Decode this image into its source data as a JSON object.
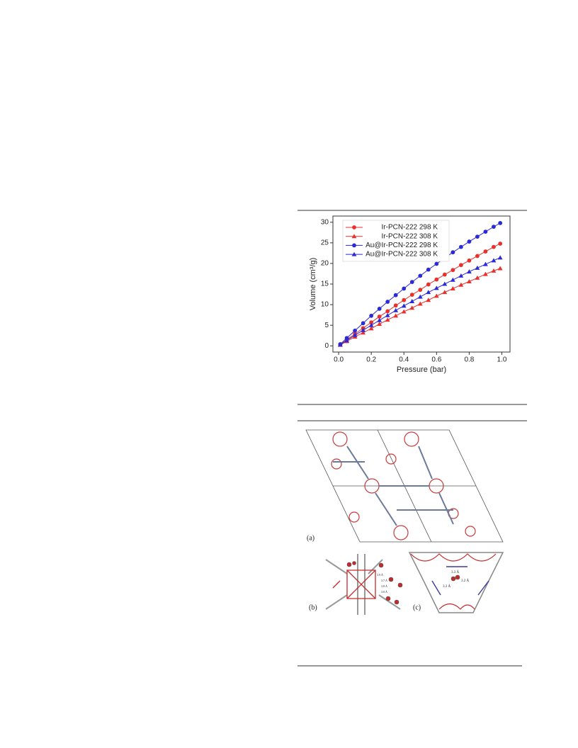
{
  "chart_data": {
    "type": "line",
    "x_label": "Pressure (bar)",
    "y_label": "Volume (cm³/g)",
    "x": [
      0.01,
      0.05,
      0.1,
      0.15,
      0.2,
      0.25,
      0.3,
      0.35,
      0.4,
      0.45,
      0.5,
      0.55,
      0.6,
      0.65,
      0.7,
      0.75,
      0.8,
      0.85,
      0.9,
      0.95,
      0.99
    ],
    "series": [
      {
        "name": "Ir-PCN-222 298 K",
        "color": "#e8302c",
        "marker": "circle",
        "values": [
          0.3,
          1.5,
          2.9,
          4.3,
          5.7,
          7.1,
          8.4,
          9.8,
          11.1,
          12.4,
          13.6,
          14.9,
          16.1,
          17.3,
          18.4,
          19.6,
          20.7,
          21.8,
          22.9,
          24.0,
          24.8
        ]
      },
      {
        "name": "Ir-PCN-222 308 K",
        "color": "#e8302c",
        "marker": "triangle",
        "values": [
          0.2,
          1.1,
          2.2,
          3.2,
          4.2,
          5.3,
          6.3,
          7.3,
          8.3,
          9.2,
          10.2,
          11.1,
          12.1,
          13.0,
          13.9,
          14.8,
          15.6,
          16.5,
          17.4,
          18.2,
          18.8
        ]
      },
      {
        "name": "Au@Ir-PCN-222 298 K",
        "color": "#2a2ad6",
        "marker": "circle",
        "values": [
          0.4,
          1.9,
          3.7,
          5.5,
          7.3,
          9.0,
          10.7,
          12.3,
          13.9,
          15.5,
          17.0,
          18.5,
          19.9,
          21.3,
          22.7,
          24.0,
          25.3,
          26.5,
          27.7,
          28.9,
          29.8
        ]
      },
      {
        "name": "Au@Ir-PCN-222 308 K",
        "color": "#2a2ad6",
        "marker": "triangle",
        "values": [
          0.3,
          1.3,
          2.6,
          3.8,
          5.0,
          6.2,
          7.4,
          8.6,
          9.7,
          10.8,
          11.9,
          13.0,
          14.0,
          15.0,
          16.0,
          17.0,
          18.0,
          18.9,
          19.8,
          20.7,
          21.4
        ]
      }
    ],
    "xlim": [
      -0.035,
      1.05
    ],
    "xticks": [
      {
        "value": 0,
        "label": "0.0"
      },
      {
        "value": 0.2,
        "label": "0.2"
      },
      {
        "value": 0.4,
        "label": "0.4"
      },
      {
        "value": 0.6,
        "label": "0.6"
      },
      {
        "value": 0.8,
        "label": "0.8"
      },
      {
        "value": 1,
        "label": "1.0"
      }
    ],
    "ylim": [
      -1.5,
      31.5
    ],
    "yticks": [
      0,
      5,
      10,
      15,
      20,
      25,
      30
    ],
    "legend": "upper-left",
    "grid": false
  },
  "figure": {
    "panels": [
      {
        "label": "(a)"
      },
      {
        "label": "(b)",
        "distances": [
          "3.9 Å",
          "3.7 Å",
          "3.8 Å",
          "3.8 Å"
        ]
      },
      {
        "label": "(c)",
        "distances": [
          "3.3 Å",
          "3.2 Å",
          "3.3 Å"
        ]
      }
    ]
  }
}
